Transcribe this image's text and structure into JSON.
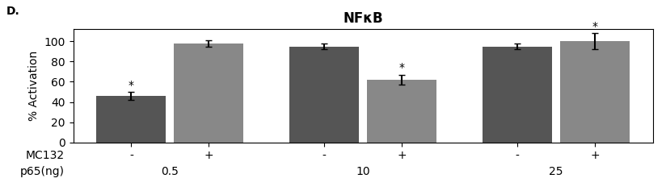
{
  "chart_data": {
    "type": "bar",
    "title": "NFκB",
    "categories": [
      "0.5",
      "10",
      "25"
    ],
    "series": [
      {
        "name": "-",
        "color": "#555555",
        "values": [
          46,
          95,
          95
        ],
        "errors": [
          4,
          3,
          3
        ]
      },
      {
        "name": "+",
        "color": "#888888",
        "values": [
          98,
          62,
          100
        ],
        "errors": [
          3,
          5,
          8
        ]
      }
    ],
    "ylabel": "% Activation",
    "ylim": [
      0,
      112
    ],
    "yticks": [
      0,
      20,
      40,
      60,
      80,
      100
    ],
    "grid": false,
    "annotations": [
      {
        "text": "D."
      },
      {
        "text": "MC132"
      },
      {
        "text": "p65(ng)"
      },
      {
        "text": "*",
        "series": 0,
        "category": 0
      },
      {
        "text": "*",
        "series": 1,
        "category": 1
      },
      {
        "text": "*",
        "series": 1,
        "category": 2
      }
    ]
  }
}
